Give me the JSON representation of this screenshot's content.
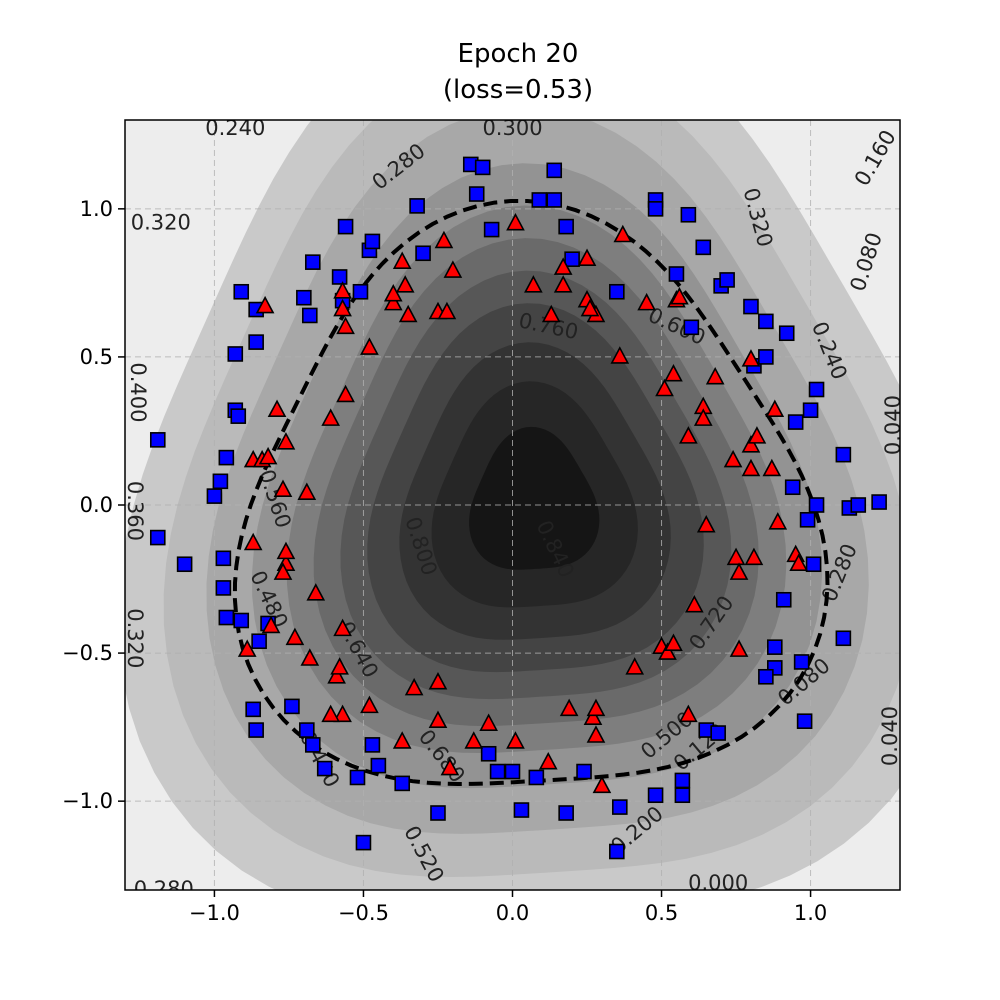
{
  "chart_data": {
    "type": "scatter",
    "title": "Epoch 20",
    "subtitle": "(loss=0.53)",
    "xlim": [
      -1.3,
      1.3
    ],
    "ylim": [
      -1.3,
      1.3
    ],
    "x_ticks": [
      -1.0,
      -0.5,
      0.0,
      0.5,
      1.0
    ],
    "y_ticks": [
      -1.0,
      -0.5,
      0.0,
      0.5,
      1.0
    ],
    "x_tick_labels": [
      "−1.0",
      "−0.5",
      "0.0",
      "0.5",
      "1.0"
    ],
    "y_tick_labels": [
      "−1.0",
      "−0.5",
      "0.0",
      "0.5",
      "1.0"
    ],
    "grid": true,
    "background": "filled grayscale contour of predicted probability (darker = higher)",
    "decision_boundary": {
      "level": 0.5,
      "style": "dashed",
      "color": "#000000"
    },
    "contour_labels": [
      {
        "text": "0.240",
        "x": -0.93,
        "y": 1.27,
        "color": "#222222",
        "rot": 0
      },
      {
        "text": "0.300",
        "x": 0.0,
        "y": 1.27,
        "color": "#222222",
        "rot": 0
      },
      {
        "text": "0.280",
        "x": -0.38,
        "y": 1.14,
        "color": "#222222",
        "rot": -38
      },
      {
        "text": "0.160",
        "x": 1.22,
        "y": 1.17,
        "color": "#222222",
        "rot": -60
      },
      {
        "text": "0.320",
        "x": -1.18,
        "y": 0.95,
        "color": "#222222",
        "rot": 0
      },
      {
        "text": "0.320",
        "x": 0.82,
        "y": 0.97,
        "color": "#222222",
        "rot": 75
      },
      {
        "text": "0.080",
        "x": 1.19,
        "y": 0.82,
        "color": "#222222",
        "rot": -72
      },
      {
        "text": "0.760",
        "x": 0.12,
        "y": 0.6,
        "color": "#222222",
        "rot": 12
      },
      {
        "text": "0.600",
        "x": 0.55,
        "y": 0.6,
        "color": "#222222",
        "rot": 25
      },
      {
        "text": "0.240",
        "x": 1.06,
        "y": 0.52,
        "color": "#222222",
        "rot": 68
      },
      {
        "text": "0.400",
        "x": -1.26,
        "y": 0.38,
        "color": "#222222",
        "rot": 90
      },
      {
        "text": "0.040",
        "x": 1.28,
        "y": 0.27,
        "color": "#222222",
        "rot": -90
      },
      {
        "text": "0.560",
        "x": -0.8,
        "y": 0.02,
        "color": "#222222",
        "rot": 72
      },
      {
        "text": "0.360",
        "x": -1.27,
        "y": -0.02,
        "color": "#222222",
        "rot": 90
      },
      {
        "text": "0.800",
        "x": -0.31,
        "y": -0.14,
        "color": "#222222",
        "rot": 72
      },
      {
        "text": "0.840",
        "x": 0.14,
        "y": -0.15,
        "color": "#222222",
        "rot": 65
      },
      {
        "text": "0.480",
        "x": -0.82,
        "y": -0.32,
        "color": "#222222",
        "rot": 65
      },
      {
        "text": "0.280",
        "x": 1.1,
        "y": -0.23,
        "color": "#222222",
        "rot": -68
      },
      {
        "text": "0.320",
        "x": -1.27,
        "y": -0.45,
        "color": "#222222",
        "rot": 90
      },
      {
        "text": "0.720",
        "x": 0.67,
        "y": -0.4,
        "color": "#222222",
        "rot": -55
      },
      {
        "text": "0.640",
        "x": -0.52,
        "y": -0.49,
        "color": "#222222",
        "rot": 62
      },
      {
        "text": "0.080",
        "x": 0.98,
        "y": -0.6,
        "color": "#222222",
        "rot": -40
      },
      {
        "text": "0.680",
        "x": -0.24,
        "y": -0.85,
        "color": "#222222",
        "rot": 52
      },
      {
        "text": "0.500",
        "x": 0.52,
        "y": -0.78,
        "color": "#222222",
        "rot": -40
      },
      {
        "text": "0.120",
        "x": 0.63,
        "y": -0.82,
        "color": "#222222",
        "rot": -40
      },
      {
        "text": "0.440",
        "x": -0.65,
        "y": -0.86,
        "color": "#222222",
        "rot": 62
      },
      {
        "text": "0.040",
        "x": 1.27,
        "y": -0.78,
        "color": "#222222",
        "rot": -90
      },
      {
        "text": "0.200",
        "x": 0.42,
        "y": -1.1,
        "color": "#222222",
        "rot": -40
      },
      {
        "text": "0.520",
        "x": -0.3,
        "y": -1.18,
        "color": "#222222",
        "rot": 62
      },
      {
        "text": "0.280",
        "x": -1.17,
        "y": -1.3,
        "color": "#222222",
        "rot": 0
      },
      {
        "text": "0.000",
        "x": 0.69,
        "y": -1.28,
        "color": "#222222",
        "rot": 0
      }
    ],
    "series": [
      {
        "marker": "square",
        "color": "#0000ff",
        "edgecolor": "#000000",
        "points": [
          [
            -1.19,
            0.22
          ],
          [
            -1.0,
            0.03
          ],
          [
            -0.98,
            0.08
          ],
          [
            -0.96,
            0.16
          ],
          [
            -0.93,
            0.32
          ],
          [
            -0.92,
            0.3
          ],
          [
            -0.93,
            0.51
          ],
          [
            -0.91,
            0.72
          ],
          [
            -0.86,
            0.66
          ],
          [
            -0.86,
            0.55
          ],
          [
            -0.67,
            0.82
          ],
          [
            -0.7,
            0.7
          ],
          [
            -0.68,
            0.64
          ],
          [
            -0.58,
            0.77
          ],
          [
            -0.57,
            0.69
          ],
          [
            -0.56,
            0.94
          ],
          [
            -0.48,
            0.86
          ],
          [
            -0.47,
            0.89
          ],
          [
            -0.51,
            0.72
          ],
          [
            -0.32,
            1.01
          ],
          [
            -0.3,
            0.85
          ],
          [
            -0.14,
            1.15
          ],
          [
            -0.12,
            1.05
          ],
          [
            -0.1,
            1.14
          ],
          [
            -0.07,
            0.93
          ],
          [
            0.09,
            1.03
          ],
          [
            0.14,
            1.03
          ],
          [
            0.14,
            1.13
          ],
          [
            0.18,
            0.94
          ],
          [
            0.2,
            0.83
          ],
          [
            0.35,
            0.72
          ],
          [
            0.48,
            1.03
          ],
          [
            0.48,
            1.0
          ],
          [
            0.55,
            0.78
          ],
          [
            0.59,
            0.98
          ],
          [
            0.6,
            0.6
          ],
          [
            0.64,
            0.87
          ],
          [
            0.7,
            0.74
          ],
          [
            0.72,
            0.76
          ],
          [
            0.8,
            0.67
          ],
          [
            0.81,
            0.47
          ],
          [
            0.85,
            0.62
          ],
          [
            0.85,
            0.5
          ],
          [
            0.92,
            0.58
          ],
          [
            0.95,
            0.28
          ],
          [
            1.0,
            0.32
          ],
          [
            1.02,
            0.39
          ],
          [
            1.11,
            0.17
          ],
          [
            0.94,
            0.06
          ],
          [
            1.02,
            0.0
          ],
          [
            0.99,
            -0.05
          ],
          [
            1.13,
            -0.01
          ],
          [
            1.16,
            0.0
          ],
          [
            1.23,
            0.01
          ],
          [
            1.01,
            -0.2
          ],
          [
            0.91,
            -0.32
          ],
          [
            0.88,
            -0.48
          ],
          [
            0.88,
            -0.55
          ],
          [
            0.85,
            -0.58
          ],
          [
            0.97,
            -0.53
          ],
          [
            1.11,
            -0.45
          ],
          [
            0.98,
            -0.73
          ],
          [
            0.65,
            -0.76
          ],
          [
            0.69,
            -0.77
          ],
          [
            0.57,
            -0.93
          ],
          [
            0.57,
            -0.98
          ],
          [
            0.48,
            -0.98
          ],
          [
            0.36,
            -1.02
          ],
          [
            0.35,
            -1.17
          ],
          [
            0.24,
            -0.9
          ],
          [
            0.18,
            -1.04
          ],
          [
            0.08,
            -0.92
          ],
          [
            0.03,
            -1.03
          ],
          [
            0.0,
            -0.9
          ],
          [
            -0.05,
            -0.9
          ],
          [
            -0.08,
            -0.84
          ],
          [
            -0.25,
            -1.04
          ],
          [
            -0.37,
            -0.94
          ],
          [
            -0.5,
            -1.14
          ],
          [
            -0.52,
            -0.92
          ],
          [
            -0.45,
            -0.88
          ],
          [
            -0.47,
            -0.81
          ],
          [
            -0.63,
            -0.89
          ],
          [
            -0.67,
            -0.81
          ],
          [
            -0.69,
            -0.76
          ],
          [
            -0.74,
            -0.68
          ],
          [
            -0.87,
            -0.69
          ],
          [
            -0.86,
            -0.76
          ],
          [
            -0.85,
            -0.46
          ],
          [
            -0.82,
            -0.4
          ],
          [
            -0.91,
            -0.39
          ],
          [
            -0.96,
            -0.38
          ],
          [
            -0.97,
            -0.28
          ],
          [
            -0.97,
            -0.18
          ],
          [
            -1.1,
            -0.2
          ],
          [
            -1.19,
            -0.11
          ]
        ]
      },
      {
        "marker": "triangle",
        "color": "#ff0000",
        "edgecolor": "#000000",
        "points": [
          [
            -0.57,
            0.72
          ],
          [
            -0.57,
            0.66
          ],
          [
            -0.56,
            0.6
          ],
          [
            -0.56,
            0.37
          ],
          [
            -0.61,
            0.29
          ],
          [
            -0.48,
            0.53
          ],
          [
            -0.4,
            0.68
          ],
          [
            -0.4,
            0.71
          ],
          [
            -0.37,
            0.82
          ],
          [
            -0.36,
            0.74
          ],
          [
            -0.35,
            0.64
          ],
          [
            -0.23,
            0.89
          ],
          [
            -0.25,
            0.65
          ],
          [
            -0.22,
            0.65
          ],
          [
            -0.2,
            0.79
          ],
          [
            0.01,
            0.95
          ],
          [
            0.07,
            0.74
          ],
          [
            0.13,
            0.64
          ],
          [
            0.17,
            0.74
          ],
          [
            0.17,
            0.8
          ],
          [
            0.25,
            0.83
          ],
          [
            0.25,
            0.69
          ],
          [
            0.28,
            0.64
          ],
          [
            0.26,
            0.66
          ],
          [
            0.37,
            0.91
          ],
          [
            0.36,
            0.5
          ],
          [
            0.45,
            0.68
          ],
          [
            0.51,
            0.39
          ],
          [
            0.54,
            0.44
          ],
          [
            0.55,
            0.69
          ],
          [
            0.56,
            0.7
          ],
          [
            0.59,
            0.23
          ],
          [
            0.64,
            0.33
          ],
          [
            0.64,
            0.29
          ],
          [
            0.68,
            0.43
          ],
          [
            0.74,
            0.15
          ],
          [
            0.8,
            0.12
          ],
          [
            0.8,
            0.49
          ],
          [
            0.8,
            0.2
          ],
          [
            0.82,
            0.23
          ],
          [
            0.87,
            0.12
          ],
          [
            0.88,
            0.32
          ],
          [
            0.89,
            -0.06
          ],
          [
            0.65,
            -0.07
          ],
          [
            0.61,
            -0.34
          ],
          [
            0.75,
            -0.18
          ],
          [
            0.76,
            -0.23
          ],
          [
            0.81,
            -0.18
          ],
          [
            0.95,
            -0.17
          ],
          [
            0.96,
            -0.2
          ],
          [
            0.76,
            -0.49
          ],
          [
            0.5,
            -0.48
          ],
          [
            0.52,
            -0.5
          ],
          [
            0.54,
            -0.47
          ],
          [
            0.41,
            -0.55
          ],
          [
            0.59,
            -0.71
          ],
          [
            0.3,
            -0.95
          ],
          [
            0.27,
            -0.72
          ],
          [
            0.28,
            -0.78
          ],
          [
            0.28,
            -0.69
          ],
          [
            0.19,
            -0.69
          ],
          [
            0.12,
            -0.87
          ],
          [
            0.01,
            -0.8
          ],
          [
            -0.08,
            -0.74
          ],
          [
            -0.13,
            -0.8
          ],
          [
            -0.25,
            -0.73
          ],
          [
            -0.25,
            -0.6
          ],
          [
            -0.33,
            -0.62
          ],
          [
            -0.37,
            -0.8
          ],
          [
            -0.48,
            -0.68
          ],
          [
            -0.21,
            -0.89
          ],
          [
            -0.57,
            -0.71
          ],
          [
            -0.61,
            -0.71
          ],
          [
            -0.59,
            -0.58
          ],
          [
            -0.58,
            -0.55
          ],
          [
            -0.57,
            -0.42
          ],
          [
            -0.68,
            -0.52
          ],
          [
            -0.66,
            -0.3
          ],
          [
            -0.73,
            -0.45
          ],
          [
            -0.76,
            -0.2
          ],
          [
            -0.76,
            -0.16
          ],
          [
            -0.77,
            -0.23
          ],
          [
            -0.87,
            -0.13
          ],
          [
            -0.89,
            -0.49
          ],
          [
            -0.81,
            -0.41
          ],
          [
            -0.79,
            0.32
          ],
          [
            -0.76,
            0.21
          ],
          [
            -0.87,
            0.15
          ],
          [
            -0.84,
            0.15
          ],
          [
            -0.82,
            0.16
          ],
          [
            -0.77,
            0.05
          ],
          [
            -0.69,
            0.04
          ],
          [
            -0.83,
            0.67
          ]
        ]
      }
    ]
  }
}
